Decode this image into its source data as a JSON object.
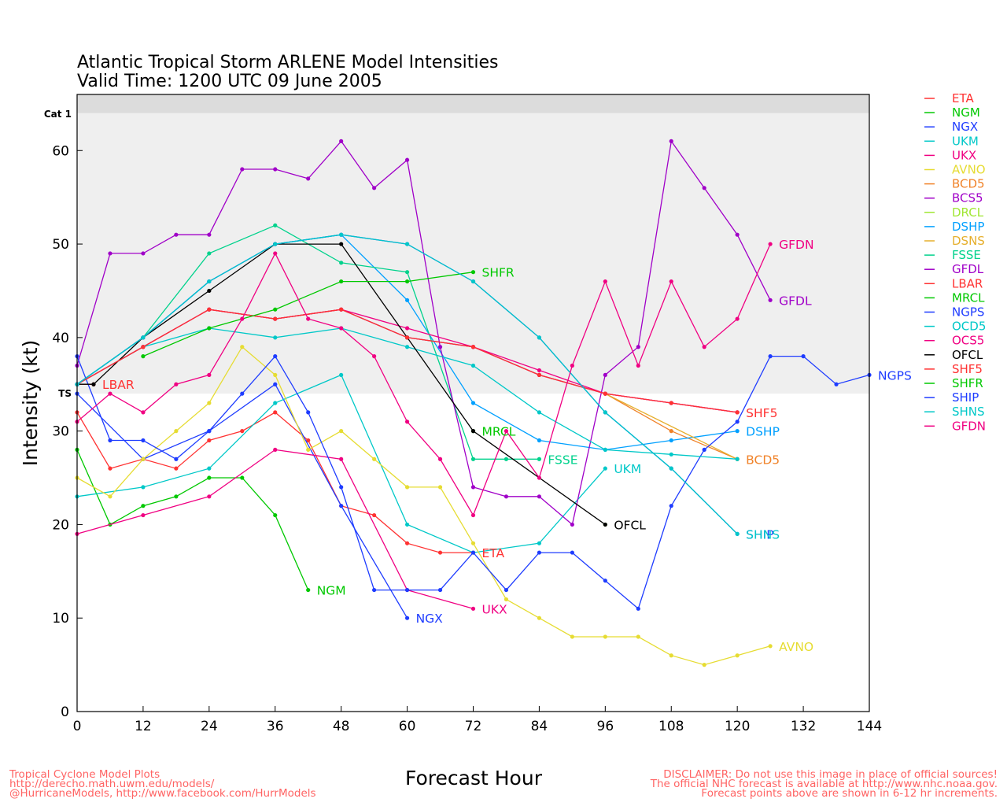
{
  "titles": {
    "line1": "Atlantic Tropical Storm ARLENE Model Intensities",
    "line2": "Valid Time: 1200 UTC 09 June 2005"
  },
  "credits": {
    "left": [
      "Tropical Cyclone Model Plots",
      "http://derecho.math.uwm.edu/models/",
      "@HurricaneModels, http://www.facebook.com/HurrModels"
    ],
    "right": [
      "DISCLAIMER: Do not use this image in place of official sources!",
      "The official NHC forecast is available at http://www.nhc.noaa.gov.",
      "Forecast points above are shown in 6-12 hr increments."
    ],
    "color": "#ff6464"
  },
  "chart_data": {
    "type": "line",
    "xlabel": "Forecast Hour",
    "ylabel": "Intensity (kt)",
    "xlim": [
      0,
      144
    ],
    "ylim": [
      0,
      66
    ],
    "xticks": [
      0,
      12,
      24,
      36,
      48,
      60,
      72,
      84,
      96,
      108,
      120,
      132,
      144
    ],
    "yticks": [
      0,
      10,
      20,
      30,
      40,
      50,
      60
    ],
    "bands": [
      {
        "label": "TS",
        "from": 34,
        "to": 64,
        "color": "#efefef"
      },
      {
        "label": "Cat 1",
        "from": 64,
        "to": 66,
        "color": "#dcdcdc"
      }
    ],
    "series": [
      {
        "name": "ETA",
        "color": "#ff3232",
        "label_at_end": true,
        "x": [
          0,
          6,
          12,
          18,
          24,
          30,
          36,
          42,
          48,
          54,
          60,
          66,
          72
        ],
        "y": [
          32,
          26,
          27,
          26,
          29,
          30,
          32,
          29,
          22,
          21,
          18,
          17,
          17
        ]
      },
      {
        "name": "NGM",
        "color": "#00c800",
        "label_at_end": true,
        "x": [
          0,
          6,
          12,
          18,
          24,
          30,
          36,
          42
        ],
        "y": [
          28,
          20,
          22,
          23,
          25,
          25,
          21,
          13
        ]
      },
      {
        "name": "NGX",
        "color": "#1e3cff",
        "label_at_end": true,
        "x": [
          0,
          12,
          24,
          36,
          48,
          60
        ],
        "y": [
          34,
          27,
          30,
          35,
          22,
          10
        ]
      },
      {
        "name": "UKM",
        "color": "#00c8c8",
        "label_at_end": true,
        "x": [
          0,
          12,
          24,
          36,
          48,
          60,
          72,
          84,
          96
        ],
        "y": [
          23,
          24,
          26,
          33,
          36,
          20,
          17,
          18,
          26
        ]
      },
      {
        "name": "UKX",
        "color": "#f00082",
        "label_at_end": true,
        "x": [
          0,
          12,
          24,
          36,
          48,
          60,
          72
        ],
        "y": [
          19,
          21,
          23,
          28,
          27,
          13,
          11
        ]
      },
      {
        "name": "AVNO",
        "color": "#e6dc32",
        "label_at_end": true,
        "x": [
          0,
          6,
          12,
          18,
          24,
          30,
          36,
          42,
          48,
          54,
          60,
          66,
          72,
          78,
          84,
          90,
          96,
          102,
          108,
          114,
          120,
          126
        ],
        "y": [
          25,
          23,
          27,
          30,
          33,
          39,
          36,
          28,
          30,
          27,
          24,
          24,
          18,
          12,
          10,
          8,
          8,
          8,
          6,
          5,
          6,
          7
        ]
      },
      {
        "name": "BCD5",
        "color": "#f08228",
        "label_at_end": true,
        "x": [
          0,
          12,
          24,
          36,
          48,
          60,
          72,
          84,
          96,
          108,
          120
        ],
        "y": [
          35,
          39,
          43,
          42,
          43,
          40,
          39,
          36,
          34,
          30,
          27
        ]
      },
      {
        "name": "BCS5",
        "color": "#a000c8",
        "label_at_end": false,
        "x": [
          0,
          12,
          24,
          36,
          48,
          60,
          72,
          84,
          96,
          108,
          120
        ],
        "y": [
          35,
          39,
          43,
          42,
          43,
          40,
          39,
          36,
          34,
          33,
          32
        ]
      },
      {
        "name": "DRCL",
        "color": "#a0e632",
        "label_at_end": false,
        "x": [
          96
        ],
        "y": [
          20
        ]
      },
      {
        "name": "DSHP",
        "color": "#00a0ff",
        "label_at_end": true,
        "x": [
          0,
          12,
          24,
          36,
          48,
          60,
          72,
          84,
          96,
          108,
          120
        ],
        "y": [
          35,
          40,
          46,
          50,
          51,
          44,
          33,
          29,
          28,
          29,
          30
        ]
      },
      {
        "name": "DSNS",
        "color": "#e6af2d",
        "label_at_end": false,
        "x": [
          96,
          120
        ],
        "y": [
          34,
          27
        ]
      },
      {
        "name": "FSSE",
        "color": "#00d28c",
        "label_at_end": true,
        "x": [
          0,
          12,
          24,
          36,
          48,
          60,
          72,
          78,
          84
        ],
        "y": [
          35,
          40,
          49,
          52,
          48,
          47,
          27,
          27,
          27
        ]
      },
      {
        "name": "GFDL",
        "color": "#a000c8",
        "label_at_end": true,
        "x": [
          0,
          6,
          12,
          18,
          24,
          30,
          36,
          42,
          48,
          54,
          60,
          66,
          72,
          78,
          84,
          90,
          96,
          102,
          108,
          114,
          120,
          126
        ],
        "y": [
          37,
          49,
          49,
          51,
          51,
          58,
          58,
          57,
          61,
          56,
          59,
          39,
          24,
          23,
          23,
          20,
          36,
          39,
          61,
          56,
          51,
          44
        ]
      },
      {
        "name": "LBAR",
        "color": "#ff3232",
        "label_at_end": true,
        "x": [
          0,
          3
        ],
        "y": [
          35,
          35
        ]
      },
      {
        "name": "MRCL",
        "color": "#00c800",
        "label_at_end": true,
        "x": [
          72
        ],
        "y": [
          30
        ]
      },
      {
        "name": "NGPS",
        "color": "#1e3cff",
        "label_at_end": true,
        "x": [
          0,
          6,
          12,
          18,
          24,
          30,
          36,
          42,
          48,
          54,
          60,
          66,
          72,
          78,
          84,
          90,
          96,
          102,
          108,
          114,
          120,
          126,
          132,
          138,
          144
        ],
        "y": [
          38,
          29,
          29,
          27,
          30,
          34,
          38,
          32,
          24,
          13,
          13,
          13,
          17,
          13,
          17,
          17,
          14,
          11,
          22,
          28,
          31,
          38,
          38,
          35,
          36
        ]
      },
      {
        "name": "OCD5",
        "color": "#00c8c8",
        "label_at_end": false,
        "x": [
          0,
          12,
          24,
          36,
          48,
          60,
          72,
          84,
          96,
          108,
          120
        ],
        "y": [
          35,
          39,
          41,
          40,
          41,
          39,
          37,
          32,
          28,
          27.5,
          27
        ]
      },
      {
        "name": "OCS5",
        "color": "#f00082",
        "label_at_end": false,
        "x": [
          0,
          12,
          24,
          36,
          48,
          60,
          72,
          84,
          96,
          108,
          120
        ],
        "y": [
          35,
          39,
          43,
          42,
          43,
          41,
          39,
          36.5,
          34,
          33,
          32
        ]
      },
      {
        "name": "OFCL",
        "color": "#000000",
        "label_at_end": true,
        "x": [
          0,
          3,
          12,
          24,
          36,
          48,
          60,
          72,
          96
        ],
        "y": [
          35,
          35,
          40,
          45,
          50,
          50,
          40,
          30,
          20
        ]
      },
      {
        "name": "SHF5",
        "color": "#ff3232",
        "label_at_end": true,
        "x": [
          0,
          12,
          24,
          36,
          48,
          60,
          72,
          84,
          96,
          108,
          120
        ],
        "y": [
          35,
          39,
          43,
          42,
          43,
          40,
          39,
          36,
          34,
          33,
          32
        ]
      },
      {
        "name": "SHFR",
        "color": "#00c800",
        "label_at_end": true,
        "x": [
          12,
          24,
          36,
          48,
          60,
          72
        ],
        "y": [
          38,
          41,
          43,
          46,
          46,
          47
        ]
      },
      {
        "name": "SHIP",
        "color": "#1e3cff",
        "label_at_end": true,
        "x": [
          0,
          12,
          24,
          36,
          48,
          60,
          72,
          84,
          96,
          108,
          120
        ],
        "y": [
          35,
          40,
          46,
          50,
          51,
          50,
          46,
          40,
          32,
          26,
          19
        ]
      },
      {
        "name": "SHNS",
        "color": "#00c8c8",
        "label_at_end": true,
        "x": [
          0,
          12,
          24,
          36,
          48,
          60,
          72,
          84,
          96,
          108,
          120
        ],
        "y": [
          35,
          40,
          46,
          50,
          51,
          50,
          46,
          40,
          32,
          26,
          19
        ]
      },
      {
        "name": "GFDN",
        "color": "#f00082",
        "label_at_end": true,
        "x": [
          0,
          6,
          12,
          18,
          24,
          30,
          36,
          42,
          48,
          54,
          60,
          66,
          72,
          78,
          84,
          90,
          96,
          102,
          108,
          114,
          120,
          126
        ],
        "y": [
          31,
          34,
          32,
          35,
          36,
          42,
          49,
          42,
          41,
          38,
          31,
          27,
          21,
          30,
          25,
          37,
          46,
          37,
          46,
          39,
          42,
          50
        ]
      }
    ]
  }
}
